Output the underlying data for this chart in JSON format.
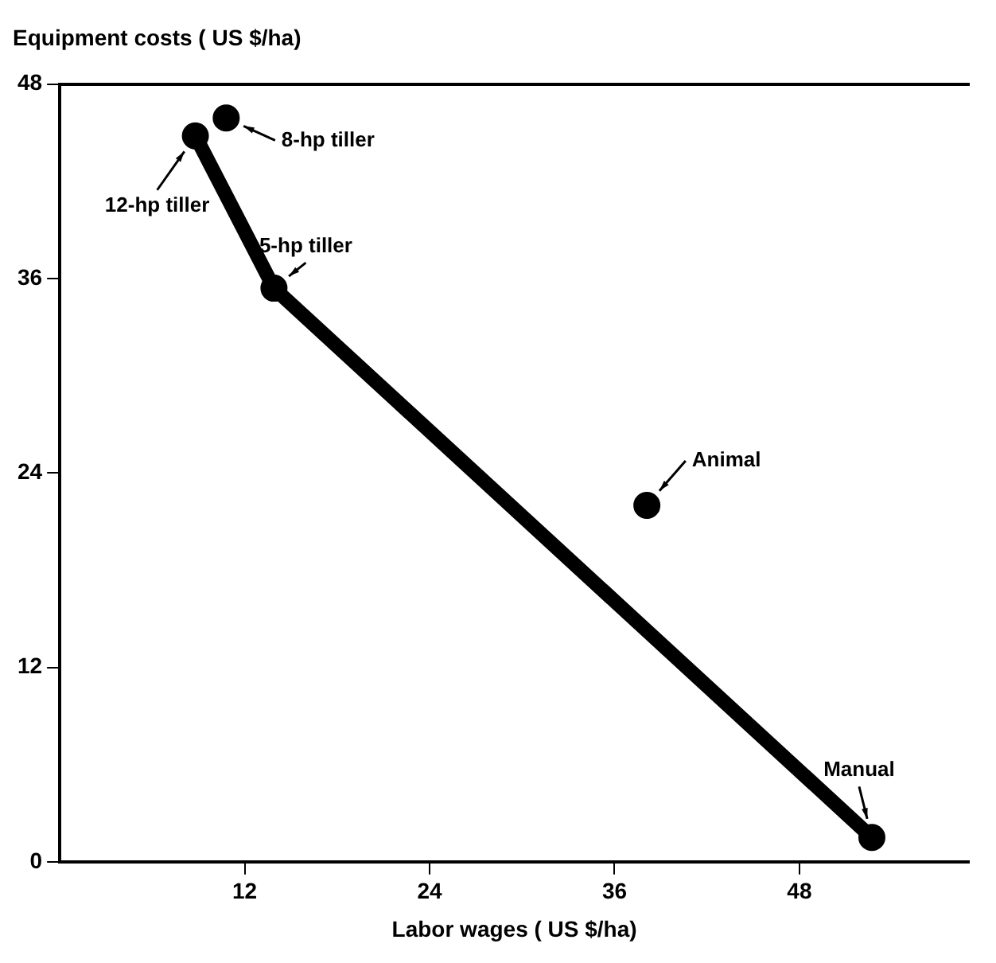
{
  "chart_data": {
    "type": "scatter",
    "xlabel": "Labor wages ( US $/ha)",
    "ylabel": "Equipment costs ( US $/ha)",
    "xlim": [
      0,
      59
    ],
    "xticks": [
      12,
      24,
      36,
      48
    ],
    "ylim": [
      0,
      48
    ],
    "yticks": [
      0,
      12,
      24,
      36,
      48
    ],
    "grid": false,
    "legend": false,
    "marker": "circle",
    "series": [
      {
        "type": "line",
        "color": "#000000",
        "x": [
          52.7,
          13.9,
          8.8
        ],
        "values": [
          1.5,
          35.4,
          44.8
        ],
        "marker": "none"
      },
      {
        "color": "#000000",
        "x": [
          52.7,
          38.1,
          13.9,
          10.8,
          8.8
        ],
        "values": [
          1.5,
          22,
          35.4,
          45.9,
          44.8
        ]
      }
    ],
    "annotations": [
      {
        "text": "Manual",
        "x": 52.7,
        "y": 1.5
      },
      {
        "text": "Animal",
        "x": 38.1,
        "y": 22
      },
      {
        "text": "5-hp tiller",
        "x": 13.9,
        "y": 35.4
      },
      {
        "text": "8-hp tiller",
        "x": 10.8,
        "y": 45.9
      },
      {
        "text": "12-hp tiller",
        "x": 8.8,
        "y": 44.8
      }
    ]
  }
}
